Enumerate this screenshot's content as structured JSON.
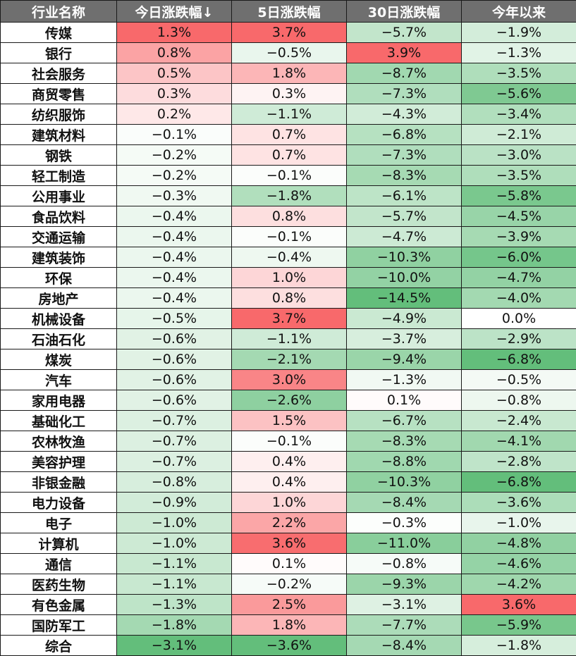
{
  "chart_data": {
    "type": "table",
    "columns": [
      "行业名称",
      "今日涨跌幅↓",
      "5日涨跌幅",
      "30日涨跌幅",
      "今年以来"
    ],
    "rows": [
      [
        "传媒",
        "1.3%",
        "3.7%",
        "−5.7%",
        "−1.9%"
      ],
      [
        "银行",
        "0.8%",
        "−0.5%",
        "3.9%",
        "−1.3%"
      ],
      [
        "社会服务",
        "0.5%",
        "1.8%",
        "−8.7%",
        "−3.5%"
      ],
      [
        "商贸零售",
        "0.3%",
        "0.3%",
        "−7.3%",
        "−5.6%"
      ],
      [
        "纺织服饰",
        "0.2%",
        "−1.1%",
        "−4.3%",
        "−3.4%"
      ],
      [
        "建筑材料",
        "−0.1%",
        "0.7%",
        "−6.8%",
        "−2.1%"
      ],
      [
        "钢铁",
        "−0.2%",
        "0.7%",
        "−7.3%",
        "−3.0%"
      ],
      [
        "轻工制造",
        "−0.2%",
        "−0.1%",
        "−8.3%",
        "−3.5%"
      ],
      [
        "公用事业",
        "−0.3%",
        "−1.8%",
        "−6.1%",
        "−5.8%"
      ],
      [
        "食品饮料",
        "−0.4%",
        "0.8%",
        "−5.7%",
        "−4.5%"
      ],
      [
        "交通运输",
        "−0.4%",
        "−0.1%",
        "−4.7%",
        "−3.9%"
      ],
      [
        "建筑装饰",
        "−0.4%",
        "−0.4%",
        "−10.3%",
        "−6.0%"
      ],
      [
        "环保",
        "−0.4%",
        "1.0%",
        "−10.0%",
        "−4.7%"
      ],
      [
        "房地产",
        "−0.4%",
        "0.8%",
        "−14.5%",
        "−4.0%"
      ],
      [
        "机械设备",
        "−0.5%",
        "3.7%",
        "−4.9%",
        "0.0%"
      ],
      [
        "石油石化",
        "−0.6%",
        "−1.1%",
        "−3.7%",
        "−2.9%"
      ],
      [
        "煤炭",
        "−0.6%",
        "−2.1%",
        "−9.4%",
        "−6.8%"
      ],
      [
        "汽车",
        "−0.6%",
        "3.0%",
        "−1.3%",
        "−0.5%"
      ],
      [
        "家用电器",
        "−0.6%",
        "−2.6%",
        "0.1%",
        "−0.8%"
      ],
      [
        "基础化工",
        "−0.7%",
        "1.5%",
        "−6.7%",
        "−2.4%"
      ],
      [
        "农林牧渔",
        "−0.7%",
        "−0.1%",
        "−8.3%",
        "−4.1%"
      ],
      [
        "美容护理",
        "−0.7%",
        "0.4%",
        "−8.8%",
        "−2.8%"
      ],
      [
        "非银金融",
        "−0.8%",
        "0.4%",
        "−10.3%",
        "−6.8%"
      ],
      [
        "电力设备",
        "−0.9%",
        "1.0%",
        "−8.4%",
        "−3.6%"
      ],
      [
        "电子",
        "−1.0%",
        "2.2%",
        "−0.3%",
        "−1.0%"
      ],
      [
        "计算机",
        "−1.0%",
        "3.6%",
        "−11.0%",
        "−4.8%"
      ],
      [
        "通信",
        "−1.1%",
        "0.1%",
        "−0.8%",
        "−4.6%"
      ],
      [
        "医药生物",
        "−1.1%",
        "−0.2%",
        "−9.3%",
        "−4.2%"
      ],
      [
        "有色金属",
        "−1.3%",
        "2.5%",
        "−3.1%",
        "3.6%"
      ],
      [
        "国防军工",
        "−1.8%",
        "1.8%",
        "−7.7%",
        "−5.9%"
      ],
      [
        "综合",
        "−3.1%",
        "−3.6%",
        "−8.4%",
        "−1.8%"
      ]
    ],
    "colors": {
      "header_bg": "#6f6f6f",
      "header_text": "#ffffff",
      "positive_max": "#f8696b",
      "negative_max": "#63be7b",
      "neutral": "#ffffff",
      "border": "#1a1a1a"
    }
  }
}
